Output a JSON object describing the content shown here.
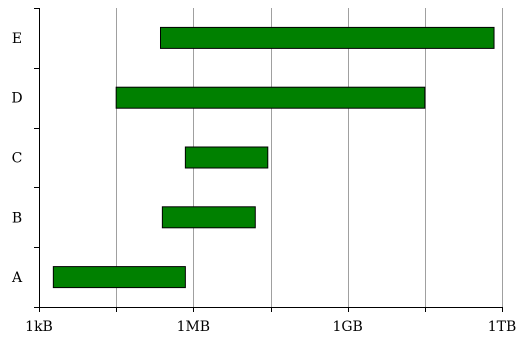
{
  "chart_data": {
    "type": "bar",
    "orientation": "horizontal",
    "value_form": "range",
    "x_scale": "log",
    "x_unit": "bytes",
    "xlim": [
      1000,
      1000000000000
    ],
    "x_ticks": [
      {
        "value": 1000,
        "label": "1kB"
      },
      {
        "value": 1000000,
        "label": "1MB"
      },
      {
        "value": 1000000000,
        "label": "1GB"
      },
      {
        "value": 1000000000000,
        "label": "1TB"
      }
    ],
    "x_minor_ticks": [
      31623,
      31622777,
      31622776602
    ],
    "categories": [
      "A",
      "B",
      "C",
      "D",
      "E"
    ],
    "ranges": [
      [
        1900,
        700000
      ],
      [
        250000,
        16000000
      ],
      [
        700000,
        28000000
      ],
      [
        31623,
        31622776602
      ],
      [
        230000,
        700000000000
      ]
    ],
    "grid": true,
    "legend": "none",
    "title": "",
    "xlabel": "",
    "ylabel": "",
    "bar_color": "#008000",
    "grid_color": "#a0a0a0"
  }
}
